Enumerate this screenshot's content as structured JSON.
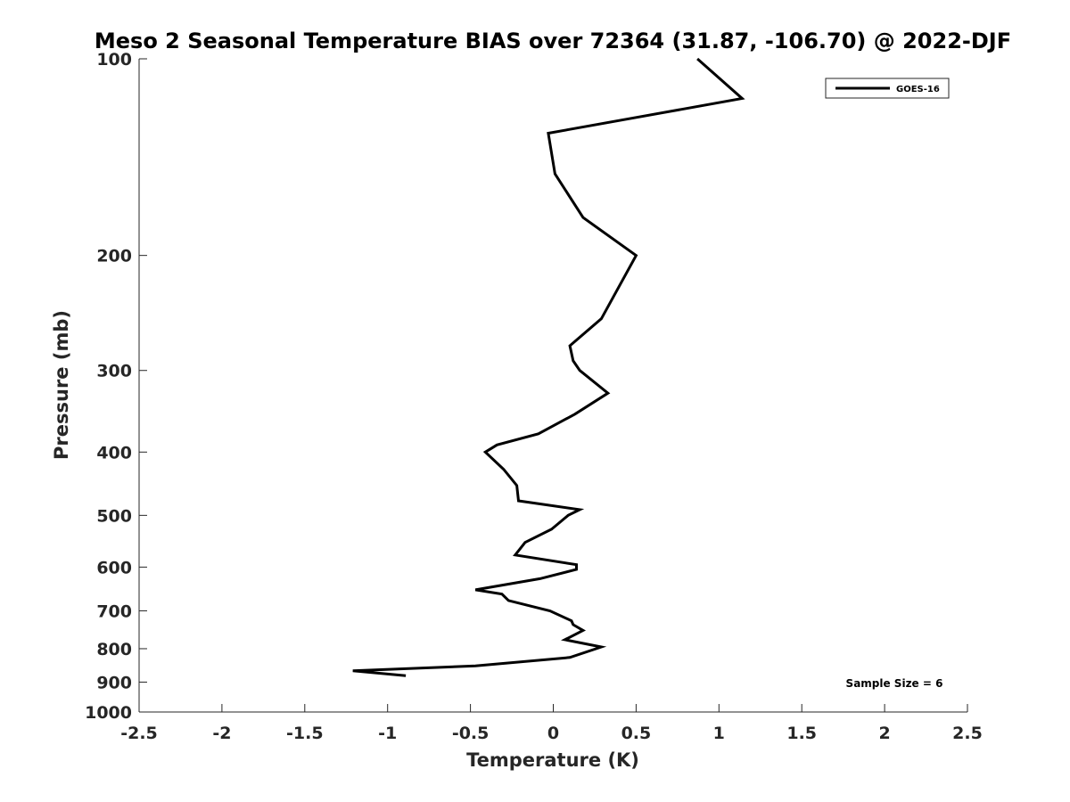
{
  "chart_data": {
    "type": "line",
    "title": "Meso 2 Seasonal Temperature BIAS over 72364 (31.87, -106.70) @ 2022-DJF",
    "xlabel": "Temperature (K)",
    "ylabel": "Pressure (mb)",
    "xlim": [
      -2.5,
      2.5
    ],
    "ylim": [
      1000,
      100
    ],
    "y_scale": "log",
    "y_reversed": true,
    "x_ticks": [
      -2.5,
      -2,
      -1.5,
      -1,
      -0.5,
      0,
      0.5,
      1,
      1.5,
      2,
      2.5
    ],
    "x_tick_labels": [
      "-2.5",
      "-2",
      "-1.5",
      "-1",
      "-0.5",
      "0",
      "0.5",
      "1",
      "1.5",
      "2",
      "2.5"
    ],
    "y_ticks": [
      100,
      200,
      300,
      400,
      500,
      600,
      700,
      800,
      900,
      1000
    ],
    "y_tick_labels": [
      "100",
      "200",
      "300",
      "400",
      "500",
      "600",
      "700",
      "800",
      "900",
      "1000"
    ],
    "grid": false,
    "legend_position": "top-right",
    "series": [
      {
        "name": "GOES-16",
        "color": "#000000",
        "points": [
          {
            "p": 100,
            "t": 0.87
          },
          {
            "p": 115,
            "t": 1.14
          },
          {
            "p": 130,
            "t": -0.03
          },
          {
            "p": 150,
            "t": 0.01
          },
          {
            "p": 175,
            "t": 0.18
          },
          {
            "p": 200,
            "t": 0.5
          },
          {
            "p": 250,
            "t": 0.29
          },
          {
            "p": 275,
            "t": 0.1
          },
          {
            "p": 290,
            "t": 0.12
          },
          {
            "p": 300,
            "t": 0.16
          },
          {
            "p": 325,
            "t": 0.33
          },
          {
            "p": 350,
            "t": 0.13
          },
          {
            "p": 375,
            "t": -0.09
          },
          {
            "p": 390,
            "t": -0.34
          },
          {
            "p": 400,
            "t": -0.41
          },
          {
            "p": 425,
            "t": -0.3
          },
          {
            "p": 450,
            "t": -0.22
          },
          {
            "p": 475,
            "t": -0.21
          },
          {
            "p": 490,
            "t": 0.16
          },
          {
            "p": 500,
            "t": 0.09
          },
          {
            "p": 525,
            "t": -0.01
          },
          {
            "p": 550,
            "t": -0.17
          },
          {
            "p": 575,
            "t": -0.23
          },
          {
            "p": 595,
            "t": 0.14
          },
          {
            "p": 605,
            "t": 0.14
          },
          {
            "p": 625,
            "t": -0.08
          },
          {
            "p": 650,
            "t": -0.47
          },
          {
            "p": 660,
            "t": -0.31
          },
          {
            "p": 675,
            "t": -0.27
          },
          {
            "p": 700,
            "t": -0.02
          },
          {
            "p": 725,
            "t": 0.11
          },
          {
            "p": 735,
            "t": 0.12
          },
          {
            "p": 750,
            "t": 0.18
          },
          {
            "p": 775,
            "t": 0.07
          },
          {
            "p": 795,
            "t": 0.29
          },
          {
            "p": 825,
            "t": 0.1
          },
          {
            "p": 850,
            "t": -0.47
          },
          {
            "p": 865,
            "t": -1.21
          },
          {
            "p": 880,
            "t": -0.89
          }
        ]
      }
    ],
    "annotations": [
      {
        "text": "Sample Size = 6",
        "position": "bottom-right"
      }
    ]
  }
}
